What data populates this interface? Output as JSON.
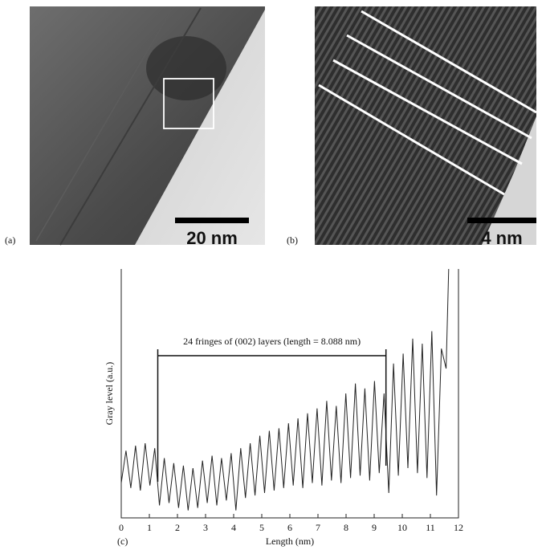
{
  "panels": {
    "a": {
      "label": "(a)",
      "scale_bar": "20 nm"
    },
    "b": {
      "label": "(b)",
      "scale_bar": "4 nm"
    }
  },
  "chart_data": {
    "type": "line",
    "panel_label": "(c)",
    "x_label": "Length (nm)",
    "y_label": "Gray level (a.u.)",
    "annotation": "24 fringes of (002) layers (length = 8.088 nm)",
    "annotation_span": [
      1.3,
      9.42
    ],
    "color": "#222222",
    "xlim": [
      0,
      12
    ],
    "xticks": [
      0,
      1,
      2,
      3,
      4,
      5,
      6,
      7,
      8,
      9,
      10,
      11,
      12
    ],
    "ylim": [
      0,
      100
    ],
    "x": [
      0.0,
      0.17,
      0.34,
      0.51,
      0.68,
      0.85,
      1.02,
      1.19,
      1.36,
      1.53,
      1.7,
      1.87,
      2.04,
      2.21,
      2.38,
      2.55,
      2.72,
      2.89,
      3.06,
      3.23,
      3.4,
      3.57,
      3.74,
      3.91,
      4.08,
      4.25,
      4.42,
      4.59,
      4.76,
      4.93,
      5.1,
      5.27,
      5.44,
      5.61,
      5.78,
      5.95,
      6.12,
      6.29,
      6.46,
      6.63,
      6.8,
      6.97,
      7.14,
      7.31,
      7.48,
      7.65,
      7.82,
      7.99,
      8.16,
      8.33,
      8.5,
      8.67,
      8.84,
      9.01,
      9.18,
      9.35,
      9.52,
      9.69,
      9.86,
      10.03,
      10.2,
      10.37,
      10.54,
      10.71,
      10.88,
      11.05,
      11.22,
      11.39,
      11.56,
      11.65
    ],
    "values": [
      14,
      27,
      12,
      29,
      11,
      30,
      13,
      28,
      5,
      24,
      6,
      22,
      4,
      21,
      3,
      20,
      4,
      23,
      6,
      25,
      5,
      24,
      7,
      26,
      3,
      28,
      8,
      30,
      9,
      33,
      10,
      35,
      11,
      36,
      12,
      38,
      13,
      40,
      12,
      42,
      14,
      44,
      13,
      47,
      15,
      45,
      14,
      50,
      16,
      54,
      17,
      52,
      15,
      55,
      18,
      50,
      10,
      62,
      17,
      66,
      20,
      72,
      18,
      70,
      16,
      75,
      9,
      68,
      60,
      100
    ]
  }
}
